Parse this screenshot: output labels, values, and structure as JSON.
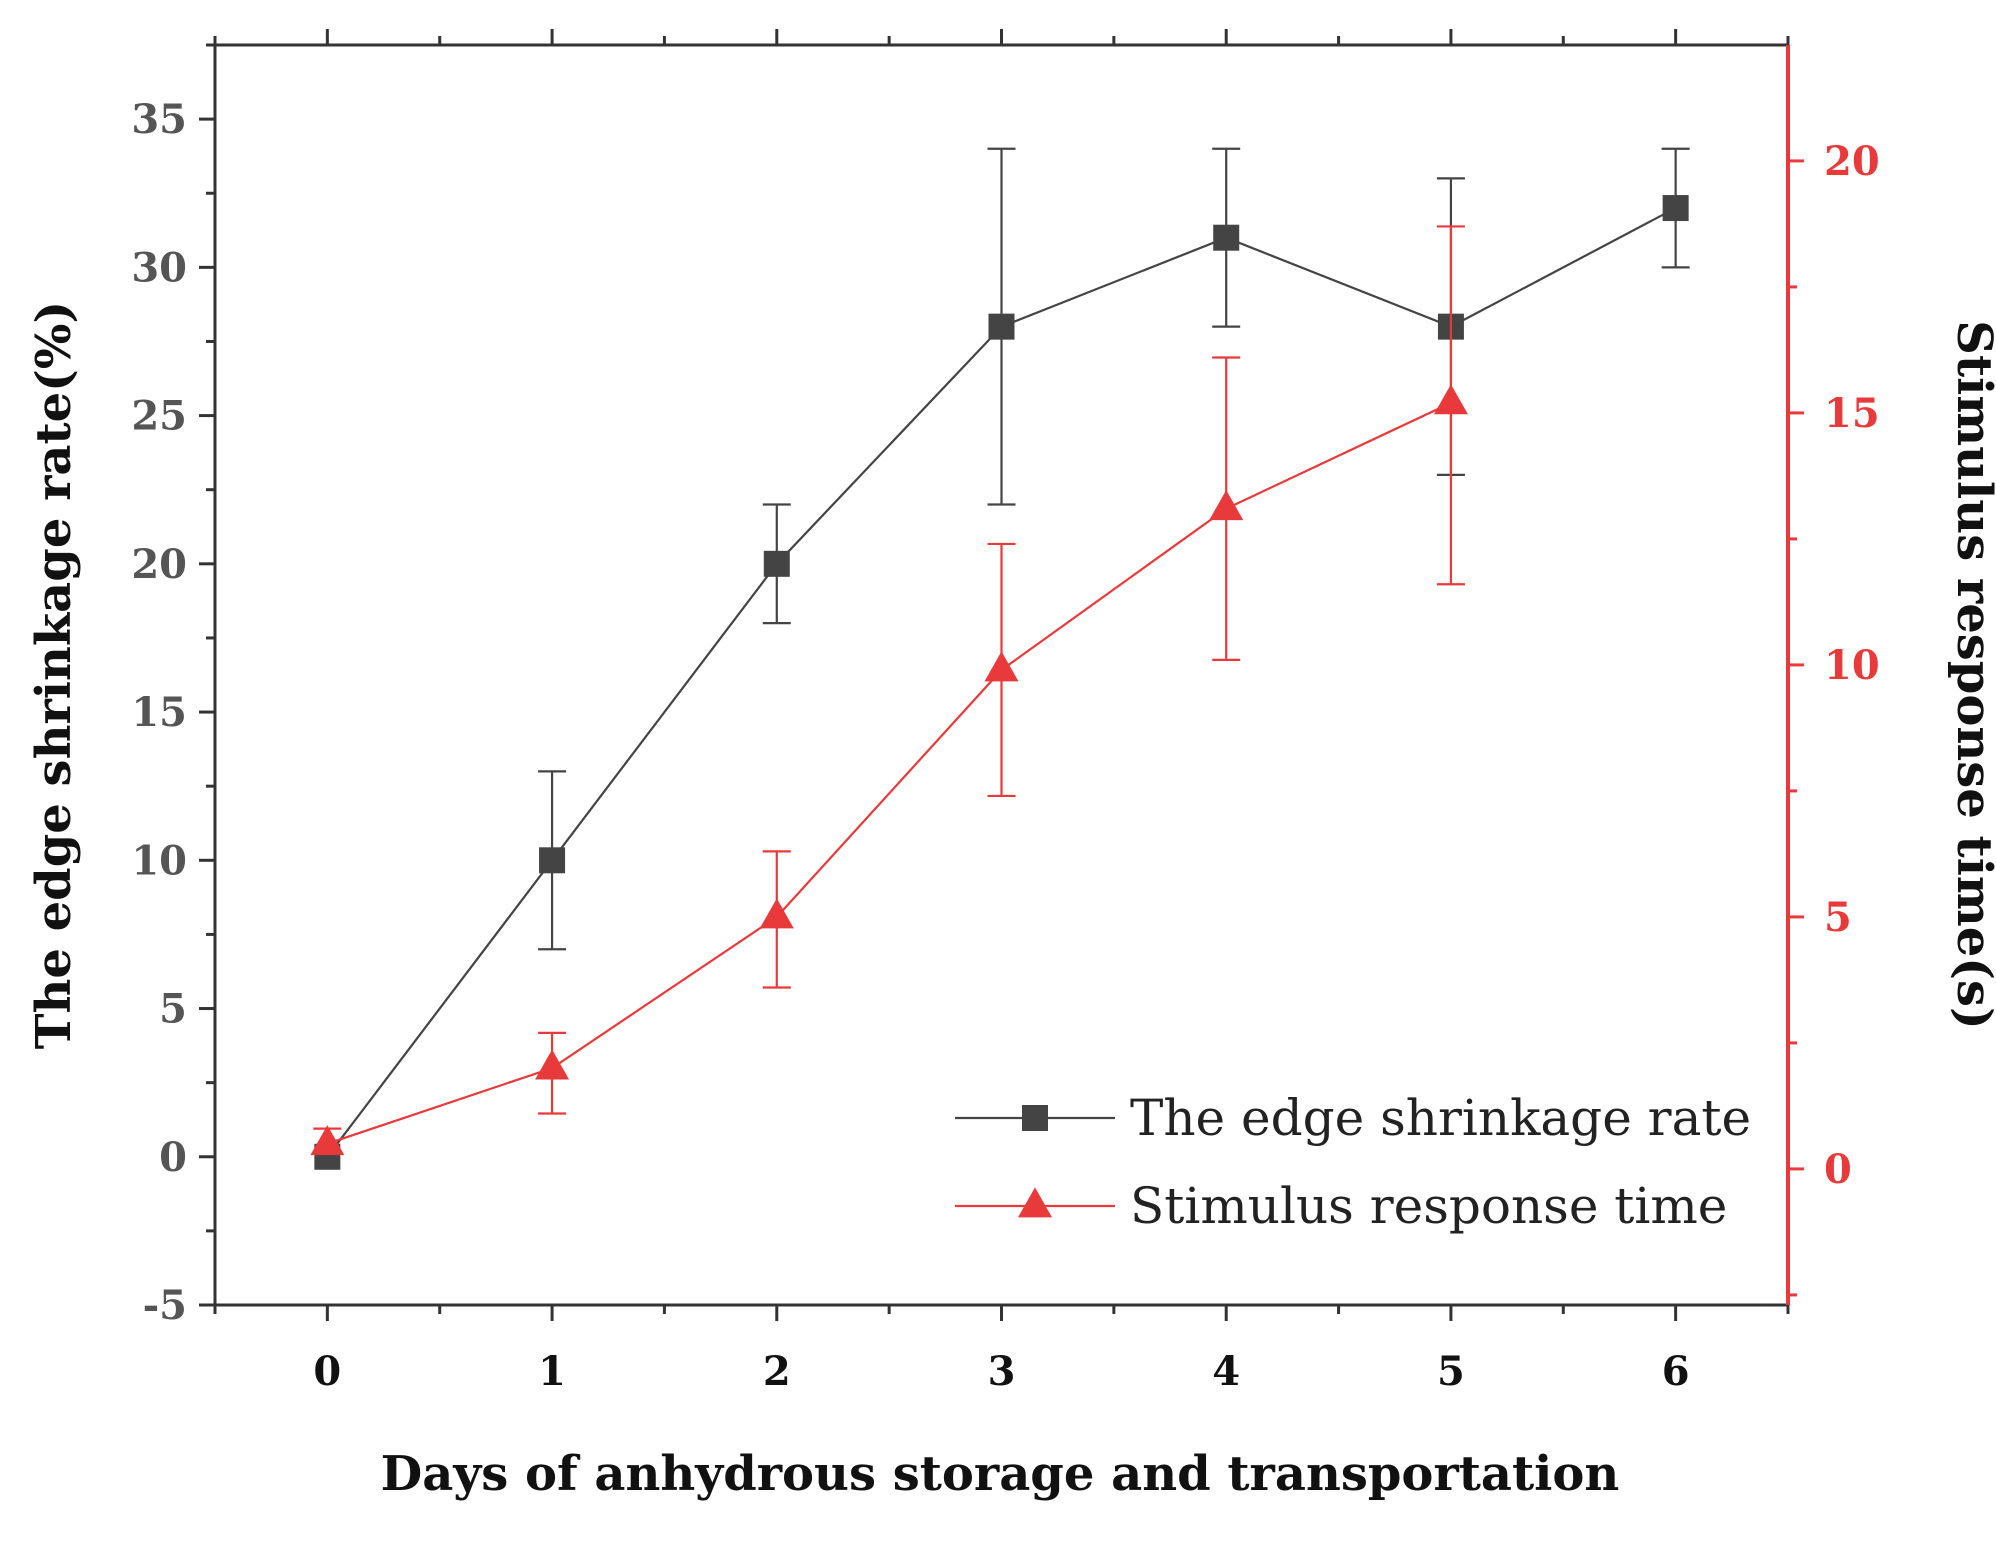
{
  "chart_data": {
    "type": "line",
    "xlabel": "Days of anhydrous storage and transportation",
    "ylabel_left": "The edge shrinkage rate(%)",
    "ylabel_right": "Stimulus response time(s)",
    "x": [
      0,
      1,
      2,
      3,
      4,
      5,
      6
    ],
    "x_ticks": [
      "0",
      "1",
      "2",
      "3",
      "4",
      "5",
      "6"
    ],
    "xlim": [
      -0.5,
      6.5
    ],
    "ylim_left": [
      -5,
      37.5
    ],
    "ylim_right": [
      -2.7,
      22.3
    ],
    "y_ticks_left": [
      "-5",
      "0",
      "5",
      "10",
      "15",
      "20",
      "25",
      "30",
      "35"
    ],
    "y_ticks_right": [
      "0",
      "5",
      "10",
      "15",
      "20"
    ],
    "grid": false,
    "legend_position": "bottom-right",
    "series": [
      {
        "name": "The edge shrinkage rate",
        "axis": "left",
        "marker": "square",
        "color": "#444444",
        "x": [
          0,
          1,
          2,
          3,
          4,
          5,
          6
        ],
        "values": [
          0,
          10,
          20,
          28,
          31,
          28,
          32
        ],
        "err_low": [
          0,
          7,
          18,
          22,
          28,
          23,
          30
        ],
        "err_high": [
          0,
          13,
          22,
          34,
          34,
          33,
          34
        ]
      },
      {
        "name": "Stimulus response time",
        "axis": "right",
        "marker": "triangle",
        "color": "#e8393b",
        "x": [
          0,
          1,
          2,
          3,
          4,
          5
        ],
        "values": [
          0.5,
          2.0,
          5.0,
          9.9,
          13.1,
          15.2
        ],
        "err_low": [
          0.3,
          1.1,
          3.6,
          7.4,
          10.1,
          11.6
        ],
        "err_high": [
          0.8,
          2.7,
          6.3,
          12.4,
          16.1,
          18.7
        ]
      }
    ]
  }
}
